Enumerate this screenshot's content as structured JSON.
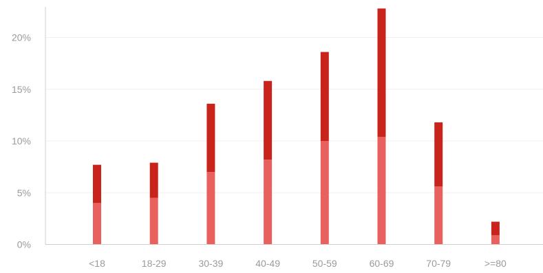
{
  "chart_data": {
    "type": "bar",
    "stacked": true,
    "categories": [
      "<18",
      "18-29",
      "30-39",
      "40-49",
      "50-59",
      "60-69",
      "70-79",
      ">=80"
    ],
    "series": [
      {
        "color": "#e8615f",
        "values": [
          4.0,
          4.5,
          7.0,
          8.2,
          10.0,
          10.4,
          5.6,
          0.9
        ]
      },
      {
        "color": "#c8241c",
        "values": [
          3.7,
          3.4,
          6.6,
          7.6,
          8.6,
          12.4,
          6.2,
          1.3
        ]
      }
    ],
    "yticks": [
      "0%",
      "5%",
      "10%",
      "15%",
      "20%"
    ],
    "ytick_values": [
      0,
      5,
      10,
      15,
      20
    ],
    "ylim": [
      0,
      23
    ],
    "grid": true,
    "legend": "none"
  }
}
